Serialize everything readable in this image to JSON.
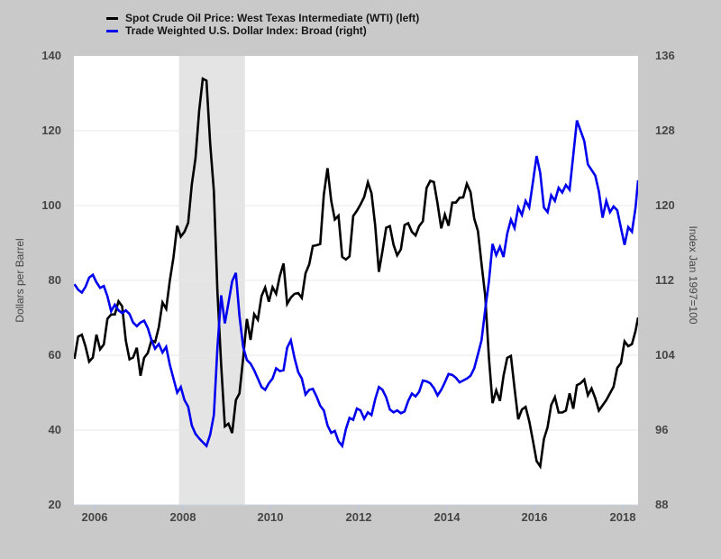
{
  "colors": {
    "page_background": "#c9c9c9",
    "plot_background": "#ffffff",
    "recession_band": "#e4e4e4",
    "gridline": "#e8e8e8",
    "axis_line": "#ccd3e3",
    "x_tick_mark": "#bdc7dd",
    "wti_line": "#000000",
    "dollar_line": "#0000ee"
  },
  "legend": [
    {
      "label": "Spot Crude Oil Price: West Texas Intermediate (WTI) (left)",
      "color": "#000000"
    },
    {
      "label": "Trade Weighted U.S. Dollar Index: Broad (right)",
      "color": "#0000ee"
    }
  ],
  "chart_data": {
    "type": "line",
    "title": "",
    "grid": "horizontal",
    "legend_position": "top-left",
    "x_start": "2005-07",
    "x_end": "2018-05",
    "points_frequency": "monthly",
    "x_tick_labels": [
      "2006",
      "2008",
      "2010",
      "2012",
      "2014",
      "2016",
      "2018"
    ],
    "left_axis": {
      "label": "Dollars per Barrel",
      "range": [
        20,
        140
      ],
      "ticks": [
        140,
        120,
        100,
        80,
        60,
        40,
        20
      ]
    },
    "right_axis": {
      "label": "Index Jan 1997=100",
      "range": [
        88,
        136
      ],
      "ticks": [
        136,
        128,
        120,
        112,
        104,
        96,
        88
      ]
    },
    "recession_band": {
      "start": "2007-12",
      "end": "2009-06"
    },
    "series": [
      {
        "name": "Spot Crude Oil Price: West Texas Intermediate (WTI)",
        "axis": "left",
        "color": "#000000",
        "values": [
          59,
          65,
          65.5,
          62.4,
          58.3,
          59.4,
          65.5,
          61.6,
          62.9,
          69.7,
          70.9,
          70.9,
          74.4,
          73.1,
          63.9,
          58.9,
          59.4,
          62,
          54.5,
          59.3,
          60.6,
          64,
          63.5,
          67.5,
          74.1,
          72.4,
          79.9,
          86.2,
          94.6,
          91.7,
          93,
          95.4,
          105.6,
          112.6,
          125.4,
          133.9,
          133.4,
          116.6,
          103.9,
          76.7,
          57.4,
          41,
          41.7,
          39.2,
          48,
          49.8,
          59.2,
          69.7,
          64.1,
          71,
          69.5,
          75.8,
          78.1,
          74.3,
          78.2,
          76.4,
          81.2,
          84.5,
          73.7,
          75.4,
          76.4,
          76.6,
          75.3,
          81.9,
          84.3,
          89.2,
          89.4,
          89.7,
          102.9,
          110,
          101.3,
          96.3,
          97.3,
          86.3,
          85.6,
          86.4,
          97.2,
          98.6,
          100.3,
          102.3,
          106.2,
          103.3,
          94.7,
          82.3,
          87.9,
          94.1,
          94.5,
          89.5,
          86.7,
          88.3,
          94.8,
          95.3,
          93,
          92,
          94.5,
          95.8,
          104.7,
          106.6,
          106.3,
          100.5,
          93.9,
          97.6,
          94.6,
          100.8,
          100.8,
          102.1,
          102.2,
          105.8,
          103.6,
          96.5,
          93.2,
          84.4,
          75.8,
          59.3,
          47.2,
          50.6,
          47.8,
          54.5,
          59.3,
          59.8,
          51.2,
          42.9,
          45.5,
          46.2,
          42.4,
          37.2,
          31.7,
          30.3,
          37.6,
          40.8,
          46.7,
          48.8,
          44.7,
          44.7,
          45.2,
          49.8,
          45.7,
          52,
          52.5,
          53.5,
          49.3,
          51.1,
          48.5,
          45.2,
          46.6,
          48,
          49.8,
          51.6,
          56.6,
          57.9,
          63.7,
          62.4,
          63,
          66.5,
          70.1
        ]
      },
      {
        "name": "Trade Weighted U.S. Dollar Index: Broad",
        "axis": "right",
        "color": "#0000ee",
        "values": [
          111.6,
          111,
          110.7,
          111.3,
          112.3,
          112.6,
          111.8,
          111.2,
          111.4,
          110.3,
          108.7,
          109.4,
          108.8,
          108.5,
          108.8,
          108.4,
          107.5,
          107.1,
          107.5,
          107.7,
          106.9,
          105.6,
          104.7,
          105.2,
          104.3,
          104.9,
          103,
          101.5,
          100,
          100.6,
          99.2,
          98.5,
          96.5,
          95.6,
          95.1,
          94.7,
          94.3,
          95.5,
          97.6,
          104.9,
          110.4,
          107.4,
          109.6,
          111.9,
          112.8,
          108.2,
          104.9,
          103.5,
          103.1,
          102.4,
          101.5,
          100.6,
          100.3,
          101,
          101.5,
          102.6,
          102.3,
          102.4,
          104.8,
          105.6,
          103.7,
          102.2,
          101.5,
          99.8,
          100.3,
          100.4,
          99.6,
          98.6,
          98.1,
          96.5,
          95.7,
          95.9,
          94.8,
          94.3,
          96.1,
          97.3,
          97.1,
          98.3,
          98.1,
          97.2,
          97.9,
          97.6,
          99.3,
          100.6,
          100.3,
          99.5,
          98.2,
          97.9,
          98.1,
          97.8,
          98,
          99.1,
          99.9,
          99.6,
          100.1,
          101.3,
          101.2,
          101,
          100.5,
          99.7,
          100.3,
          101.1,
          102,
          101.9,
          101.6,
          101.1,
          101.3,
          101.5,
          101.8,
          102.6,
          104.1,
          105.6,
          108.9,
          111.9,
          115.9,
          114.7,
          115.6,
          114.5,
          117,
          118.5,
          117.6,
          119.8,
          119,
          120.5,
          119.8,
          122.5,
          125.3,
          123.5,
          119.8,
          119.3,
          121.1,
          120.5,
          121.9,
          121.4,
          122.2,
          121.7,
          125.4,
          129.1,
          128,
          126.9,
          124.4,
          123.8,
          123.2,
          121.5,
          118.7,
          120.5,
          119.3,
          119.9,
          119.5,
          117.6,
          115.8,
          117.7,
          117.2,
          119.8,
          122.7
        ]
      }
    ]
  }
}
